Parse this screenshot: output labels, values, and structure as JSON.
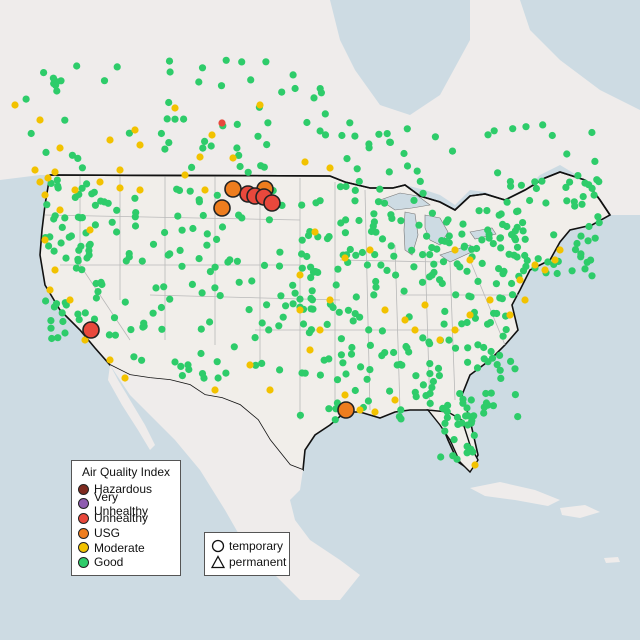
{
  "colors": {
    "ocean": "#cddbe3",
    "land": "#efeceb",
    "land_usa": "#f1eeea",
    "water_lakes": "#cddbe3",
    "border": "#111111",
    "state_lines": "#b9b9b9",
    "outline": "#222222"
  },
  "legend": {
    "title": "Air Quality Index",
    "items": [
      {
        "label": "Hazardous",
        "color": "#7e2a1f"
      },
      {
        "label": "Very Unhealthy",
        "color": "#8e5cb0"
      },
      {
        "label": "Unhealthy",
        "color": "#e8483c"
      },
      {
        "label": "USG",
        "color": "#ee7d1e"
      },
      {
        "label": "Moderate",
        "color": "#f2c200"
      },
      {
        "label": "Good",
        "color": "#2ecc6a"
      }
    ]
  },
  "monitor_types": {
    "temporary": "temporary",
    "permanent": "permanent"
  }
}
